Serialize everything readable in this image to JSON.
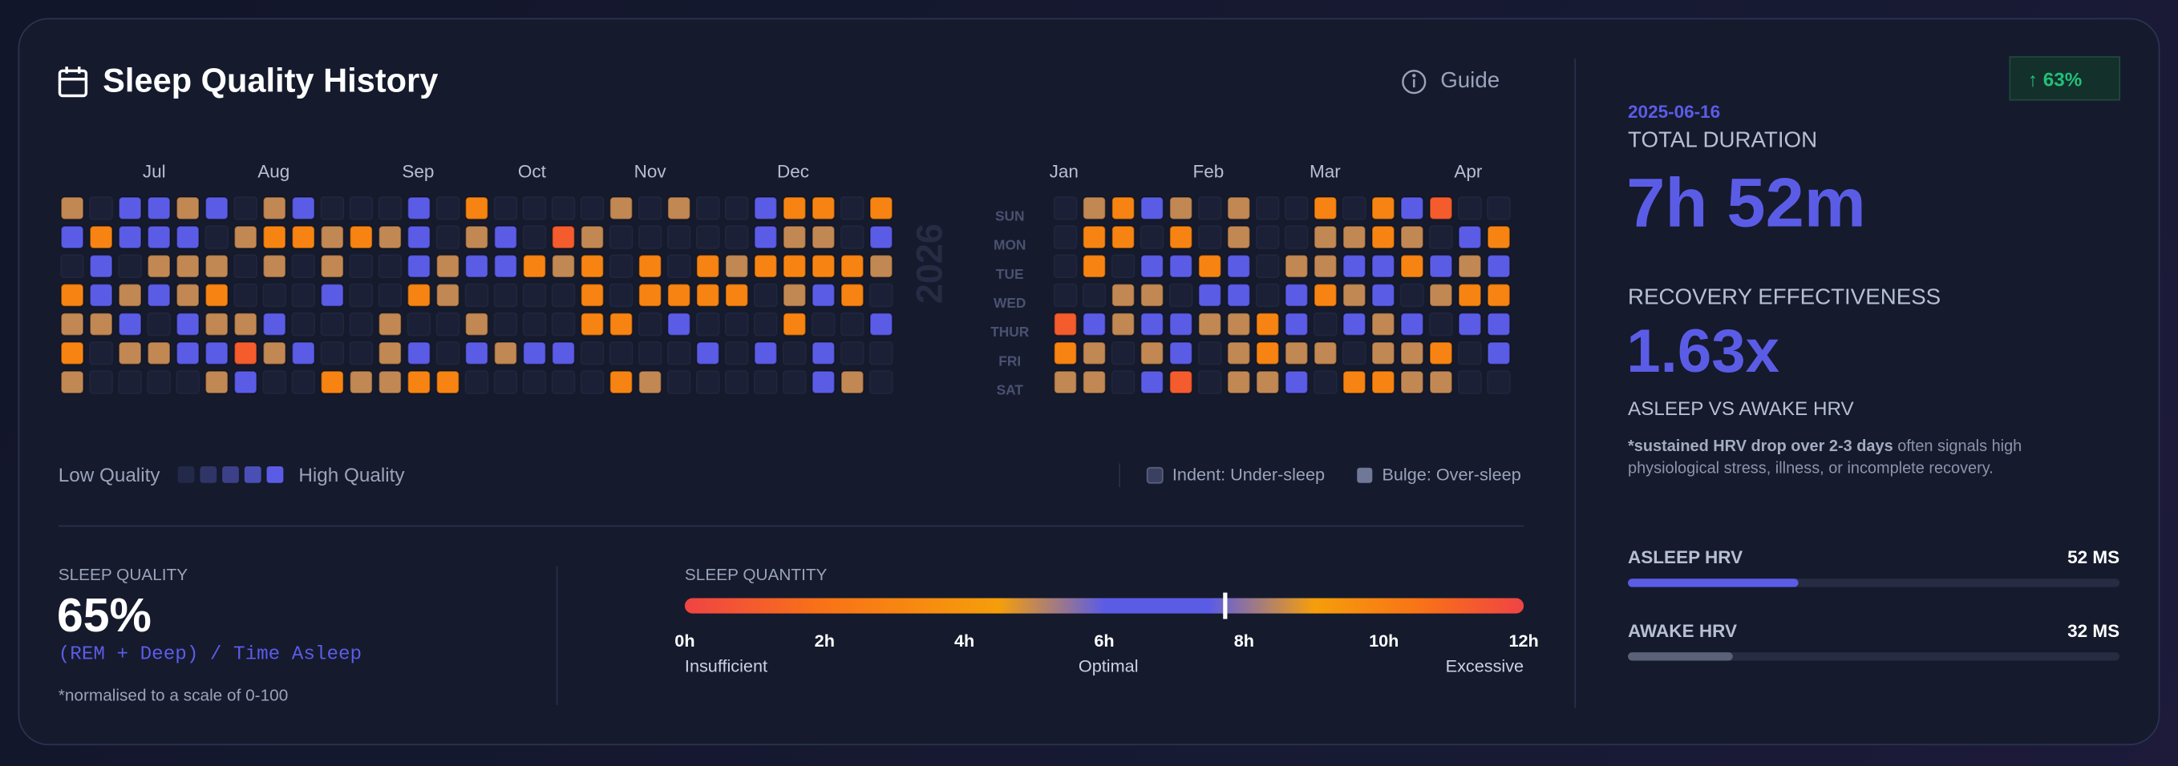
{
  "header": {
    "title": "Sleep Quality History",
    "guide": "Guide"
  },
  "heatmap": {
    "year_label": "2026",
    "days": [
      "SUN",
      "MON",
      "TUE",
      "WED",
      "THUR",
      "FRI",
      "SAT"
    ],
    "panels": [
      {
        "months": [
          "Jul",
          "Aug",
          "Sep",
          "Oct",
          "Nov",
          "Dec"
        ],
        "rows": [
          [
            5,
            null,
            7,
            7,
            5,
            7,
            null,
            5,
            7,
            null,
            null,
            null,
            7,
            null,
            3,
            null,
            null,
            null,
            null,
            5,
            null,
            5,
            null,
            null,
            7,
            3,
            3,
            null,
            3
          ],
          [
            7,
            3,
            7,
            7,
            7,
            null,
            5,
            3,
            3,
            5,
            3,
            5,
            7,
            null,
            5,
            7,
            null,
            1,
            5,
            null,
            null,
            null,
            null,
            null,
            7,
            5,
            5,
            null,
            7
          ],
          [
            null,
            7,
            null,
            5,
            5,
            5,
            null,
            5,
            null,
            5,
            null,
            null,
            7,
            5,
            7,
            7,
            3,
            5,
            3,
            null,
            3,
            null,
            3,
            5,
            3,
            3,
            3,
            3,
            5
          ],
          [
            3,
            7,
            5,
            7,
            5,
            3,
            null,
            null,
            null,
            7,
            null,
            null,
            3,
            5,
            null,
            null,
            null,
            null,
            3,
            null,
            3,
            3,
            3,
            3,
            null,
            5,
            7,
            3,
            null
          ],
          [
            5,
            5,
            7,
            null,
            7,
            5,
            5,
            7,
            null,
            null,
            null,
            5,
            null,
            null,
            5,
            null,
            null,
            null,
            3,
            3,
            null,
            7,
            null,
            null,
            null,
            3,
            null,
            null,
            7
          ],
          [
            3,
            null,
            5,
            5,
            7,
            7,
            1,
            5,
            7,
            null,
            null,
            5,
            7,
            null,
            7,
            5,
            7,
            7,
            null,
            null,
            null,
            null,
            7,
            null,
            7,
            null,
            7,
            null,
            null
          ],
          [
            5,
            null,
            null,
            null,
            null,
            5,
            7,
            null,
            null,
            3,
            5,
            5,
            3,
            3,
            null,
            null,
            null,
            null,
            null,
            3,
            5,
            null,
            null,
            null,
            null,
            null,
            7,
            5,
            null
          ]
        ]
      },
      {
        "months": [
          "Jan",
          "Feb",
          "Mar",
          "Apr"
        ],
        "rows": [
          [
            null,
            5,
            3,
            7,
            5,
            null,
            5,
            null,
            null,
            3,
            null,
            3,
            7,
            1,
            null,
            null
          ],
          [
            null,
            3,
            3,
            null,
            3,
            null,
            5,
            null,
            null,
            5,
            5,
            3,
            5,
            null,
            7,
            3
          ],
          [
            null,
            3,
            null,
            7,
            7,
            3,
            7,
            null,
            5,
            5,
            7,
            7,
            3,
            7,
            5,
            7
          ],
          [
            null,
            null,
            5,
            5,
            null,
            7,
            7,
            null,
            7,
            3,
            5,
            7,
            null,
            5,
            3,
            3
          ],
          [
            1,
            7,
            5,
            7,
            7,
            5,
            5,
            3,
            7,
            null,
            7,
            5,
            7,
            null,
            7,
            7
          ],
          [
            3,
            5,
            null,
            5,
            7,
            null,
            5,
            3,
            5,
            5,
            null,
            5,
            5,
            3,
            null,
            7
          ],
          [
            5,
            5,
            null,
            7,
            1,
            null,
            5,
            5,
            7,
            null,
            3,
            3,
            5,
            5,
            null,
            null
          ]
        ]
      }
    ]
  },
  "legend": {
    "low": "Low Quality",
    "high": "High Quality",
    "indent": "Indent: Under-sleep",
    "bulge": "Bulge: Over-sleep"
  },
  "quality": {
    "label": "SLEEP QUALITY",
    "value": 65,
    "value_label": "65%",
    "formula": "(REM + Deep) / Time Asleep",
    "note": "*normalised to a scale of 0-100"
  },
  "quantity": {
    "label": "SLEEP QUANTITY",
    "xlim": [
      0,
      12
    ],
    "xticks": [
      {
        "value": 0,
        "label": "0h"
      },
      {
        "value": 2,
        "label": "2h"
      },
      {
        "value": 4,
        "label": "4h"
      },
      {
        "value": 6,
        "label": "6h"
      },
      {
        "value": 8,
        "label": "8h"
      },
      {
        "value": 10,
        "label": "10h"
      },
      {
        "value": 12,
        "label": "12h"
      }
    ],
    "marker": 7.73,
    "zones": [
      "Insufficient",
      "Optimal",
      "Excessive"
    ]
  },
  "summary": {
    "badge": {
      "value": 63,
      "label": "↑ 63%"
    },
    "date": "2025-06-16",
    "total_label": "TOTAL DURATION",
    "total": "7h 52m",
    "recovery_label": "RECOVERY EFFECTIVENESS",
    "recovery": {
      "value": 1.63,
      "label": "1.63x"
    },
    "recovery_sub": "ASLEEP VS AWAKE HRV",
    "note_bold": "*sustained HRV drop over 2-3 days",
    "note_rest": " often signals high physiological stress, illness, or incomplete recovery.",
    "hrv_xlim": [
      0,
      150
    ],
    "hrv": [
      {
        "name": "ASLEEP HRV",
        "value": 52,
        "value_label": "52 MS"
      },
      {
        "name": "AWAKE HRV",
        "value": 32,
        "value_label": "32 MS"
      }
    ]
  }
}
